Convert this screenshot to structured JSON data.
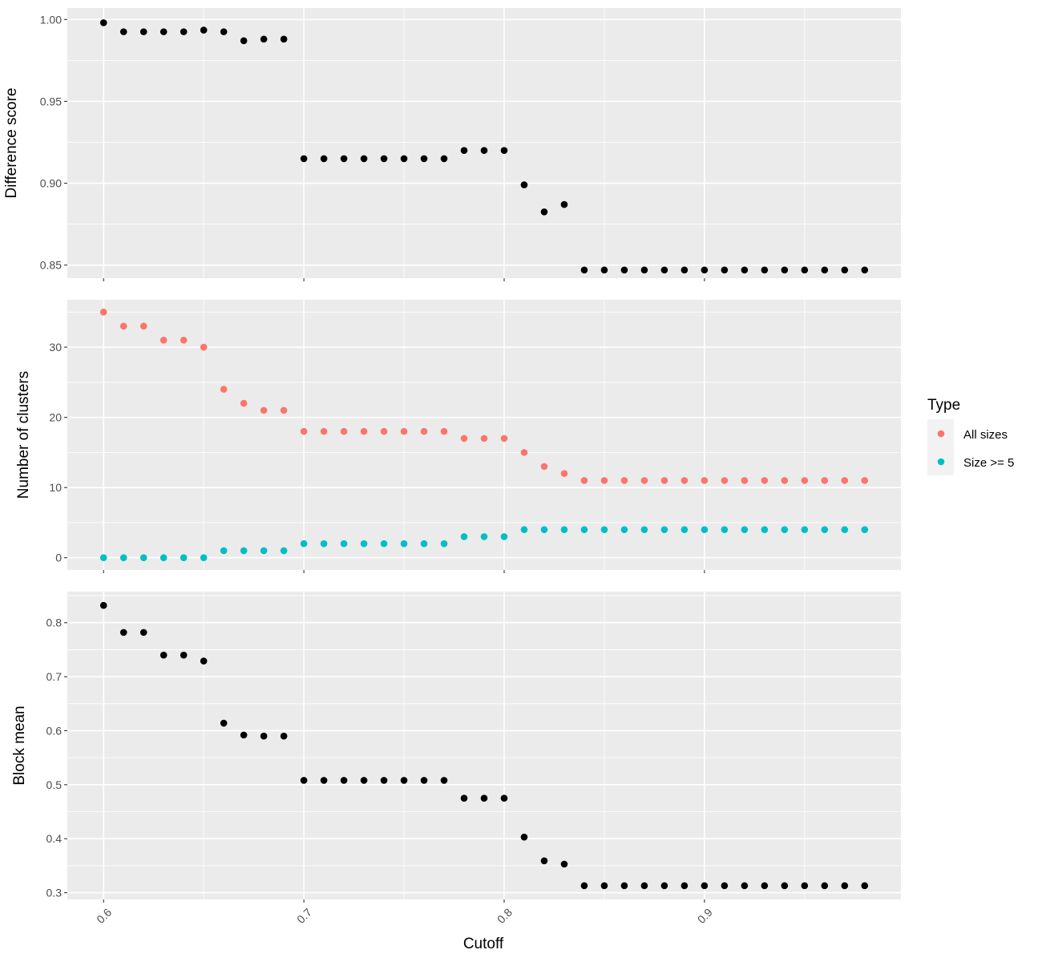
{
  "chart_data": [
    {
      "type": "scatter",
      "ylabel": "Difference score",
      "ylim": [
        0.842,
        1.007
      ],
      "yticks": [
        0.85,
        0.9,
        0.95,
        1.0
      ],
      "ytick_labels": [
        "0.85",
        "0.90",
        "0.95",
        "1.00"
      ],
      "series": [
        {
          "color": "#000000",
          "x": [
            0.6,
            0.61,
            0.62,
            0.63,
            0.64,
            0.65,
            0.66,
            0.67,
            0.68,
            0.69,
            0.7,
            0.71,
            0.72,
            0.73,
            0.74,
            0.75,
            0.76,
            0.77,
            0.78,
            0.79,
            0.8,
            0.81,
            0.82,
            0.83,
            0.84,
            0.85,
            0.86,
            0.87,
            0.88,
            0.89,
            0.9,
            0.91,
            0.92,
            0.93,
            0.94,
            0.95,
            0.96,
            0.97,
            0.98
          ],
          "y": [
            0.998,
            0.9925,
            0.9925,
            0.9925,
            0.9925,
            0.9935,
            0.9925,
            0.987,
            0.988,
            0.988,
            0.915,
            0.915,
            0.915,
            0.915,
            0.915,
            0.915,
            0.915,
            0.915,
            0.92,
            0.92,
            0.92,
            0.899,
            0.8825,
            0.887,
            0.847,
            0.847,
            0.847,
            0.847,
            0.847,
            0.847,
            0.847,
            0.847,
            0.847,
            0.847,
            0.847,
            0.847,
            0.847,
            0.847,
            0.847
          ]
        }
      ]
    },
    {
      "type": "scatter",
      "ylabel": "Number of clusters",
      "ylim": [
        -1.75,
        36.75
      ],
      "yticks": [
        0,
        10,
        20,
        30
      ],
      "ytick_labels": [
        "0",
        "10",
        "20",
        "30"
      ],
      "legend": {
        "title": "Type",
        "placement": "right"
      },
      "series": [
        {
          "name": "All sizes",
          "color": "#F8766D",
          "x": [
            0.6,
            0.61,
            0.62,
            0.63,
            0.64,
            0.65,
            0.66,
            0.67,
            0.68,
            0.69,
            0.7,
            0.71,
            0.72,
            0.73,
            0.74,
            0.75,
            0.76,
            0.77,
            0.78,
            0.79,
            0.8,
            0.81,
            0.82,
            0.83,
            0.84,
            0.85,
            0.86,
            0.87,
            0.88,
            0.89,
            0.9,
            0.91,
            0.92,
            0.93,
            0.94,
            0.95,
            0.96,
            0.97,
            0.98
          ],
          "y": [
            35,
            33,
            33,
            31,
            31,
            30,
            24,
            22,
            21,
            21,
            18,
            18,
            18,
            18,
            18,
            18,
            18,
            18,
            17,
            17,
            17,
            15,
            13,
            12,
            11,
            11,
            11,
            11,
            11,
            11,
            11,
            11,
            11,
            11,
            11,
            11,
            11,
            11,
            11
          ]
        },
        {
          "name": "Size >= 5",
          "color": "#00BFC4",
          "x": [
            0.6,
            0.61,
            0.62,
            0.63,
            0.64,
            0.65,
            0.66,
            0.67,
            0.68,
            0.69,
            0.7,
            0.71,
            0.72,
            0.73,
            0.74,
            0.75,
            0.76,
            0.77,
            0.78,
            0.79,
            0.8,
            0.81,
            0.82,
            0.83,
            0.84,
            0.85,
            0.86,
            0.87,
            0.88,
            0.89,
            0.9,
            0.91,
            0.92,
            0.93,
            0.94,
            0.95,
            0.96,
            0.97,
            0.98
          ],
          "y": [
            0,
            0,
            0,
            0,
            0,
            0,
            1,
            1,
            1,
            1,
            2,
            2,
            2,
            2,
            2,
            2,
            2,
            2,
            3,
            3,
            3,
            4,
            4,
            4,
            4,
            4,
            4,
            4,
            4,
            4,
            4,
            4,
            4,
            4,
            4,
            4,
            4,
            4,
            4
          ]
        }
      ]
    },
    {
      "type": "scatter",
      "ylabel": "Block mean",
      "xlabel": "Cutoff",
      "ylim": [
        0.2875,
        0.8575
      ],
      "yticks": [
        0.3,
        0.4,
        0.5,
        0.6,
        0.7,
        0.8
      ],
      "ytick_labels": [
        "0.3",
        "0.4",
        "0.5",
        "0.6",
        "0.7",
        "0.8"
      ],
      "series": [
        {
          "color": "#000000",
          "x": [
            0.6,
            0.61,
            0.62,
            0.63,
            0.64,
            0.65,
            0.66,
            0.67,
            0.68,
            0.69,
            0.7,
            0.71,
            0.72,
            0.73,
            0.74,
            0.75,
            0.76,
            0.77,
            0.78,
            0.79,
            0.8,
            0.81,
            0.82,
            0.83,
            0.84,
            0.85,
            0.86,
            0.87,
            0.88,
            0.89,
            0.9,
            0.91,
            0.92,
            0.93,
            0.94,
            0.95,
            0.96,
            0.97,
            0.98
          ],
          "y": [
            0.832,
            0.782,
            0.782,
            0.74,
            0.74,
            0.729,
            0.614,
            0.592,
            0.59,
            0.59,
            0.508,
            0.508,
            0.508,
            0.508,
            0.508,
            0.508,
            0.508,
            0.508,
            0.475,
            0.475,
            0.475,
            0.403,
            0.359,
            0.353,
            0.313,
            0.313,
            0.313,
            0.313,
            0.313,
            0.313,
            0.313,
            0.313,
            0.313,
            0.313,
            0.313,
            0.313,
            0.313,
            0.313,
            0.313
          ]
        }
      ]
    }
  ],
  "x_axis": {
    "xlim": [
      0.5819,
      0.9981
    ],
    "xticks": [
      0.6,
      0.7,
      0.8,
      0.9
    ],
    "xtick_labels": [
      "0.6",
      "0.7",
      "0.8",
      "0.9"
    ],
    "label": "Cutoff"
  },
  "style": {
    "panel_background": "#EBEBEB",
    "grid_color": "#FFFFFF",
    "tick_color": "#333333",
    "legend_key_background": "#F2F2F2"
  }
}
